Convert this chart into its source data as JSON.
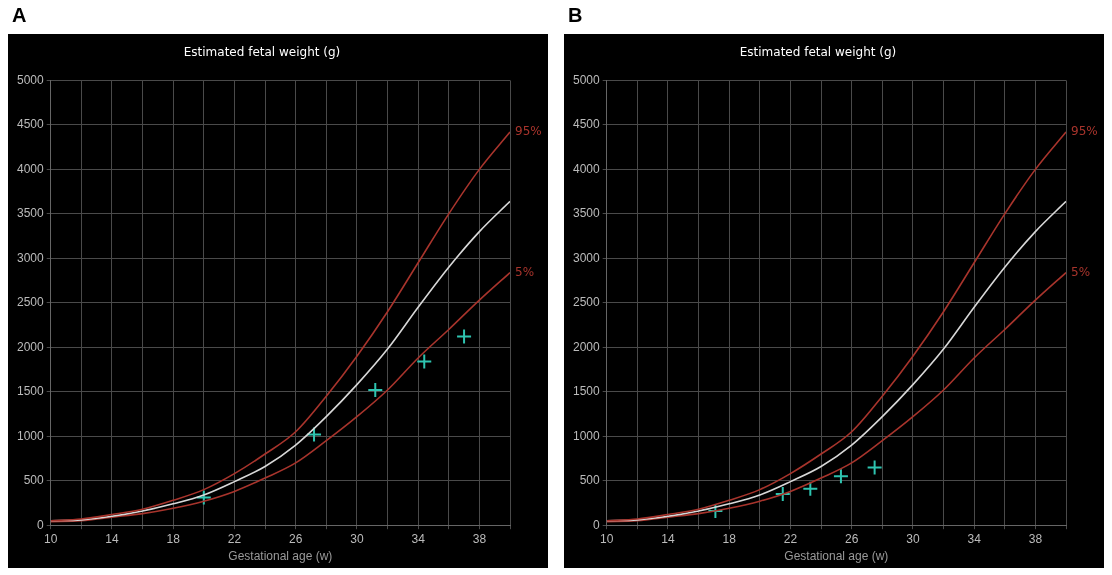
{
  "chart_data": [
    {
      "type": "line",
      "title": "Estimated fetal weight (g)",
      "xlabel": "Gestational age (w)",
      "annotations": [
        "A"
      ],
      "grid": true,
      "legend": false,
      "xlim": [
        10,
        40
      ],
      "ylim": [
        0,
        5000
      ],
      "xticks": [
        10,
        {
          "value": 12,
          "label": null
        },
        14,
        {
          "value": 16,
          "label": null
        },
        18,
        {
          "value": 20,
          "label": null
        },
        22,
        {
          "value": 24,
          "label": null
        },
        26,
        {
          "value": 28,
          "label": null
        },
        30,
        {
          "value": 32,
          "label": null
        },
        34,
        {
          "value": 36,
          "label": null
        },
        38,
        {
          "value": 40,
          "label": null
        }
      ],
      "yticks": [
        0,
        500,
        1000,
        1500,
        2000,
        2500,
        3000,
        3500,
        4000,
        4500,
        5000
      ],
      "series": [
        {
          "name": "95%",
          "type": "line",
          "color": "#a8342c",
          "marker": "none",
          "x": [
            10,
            12,
            14,
            16,
            18,
            20,
            22,
            24,
            26,
            28,
            30,
            32,
            34,
            36,
            38,
            40
          ],
          "values": [
            50,
            70,
            120,
            180,
            280,
            400,
            580,
            800,
            1050,
            1450,
            1900,
            2400,
            2950,
            3500,
            4000,
            4420
          ]
        },
        {
          "type": "line",
          "color": "#d8d8d8",
          "marker": "none",
          "x": [
            10,
            12,
            14,
            16,
            18,
            20,
            22,
            24,
            26,
            28,
            30,
            32,
            34,
            36,
            38,
            40
          ],
          "values": [
            50,
            60,
            100,
            160,
            240,
            340,
            490,
            660,
            900,
            1220,
            1580,
            1980,
            2450,
            2900,
            3300,
            3640
          ]
        },
        {
          "name": "5%",
          "type": "line",
          "color": "#a8342c",
          "marker": "none",
          "x": [
            10,
            12,
            14,
            16,
            18,
            20,
            22,
            24,
            26,
            28,
            30,
            32,
            34,
            36,
            38,
            40
          ],
          "values": [
            40,
            50,
            90,
            130,
            190,
            270,
            380,
            530,
            700,
            950,
            1220,
            1520,
            1880,
            2200,
            2530,
            2840
          ]
        },
        {
          "type": "scatter",
          "color": "#2ec4b0",
          "marker": "cross",
          "x": [
            20,
            27.2,
            31.2,
            34.4,
            37
          ],
          "values": [
            310,
            1020,
            1520,
            1840,
            2120
          ]
        }
      ]
    },
    {
      "type": "line",
      "title": "Estimated fetal weight (g)",
      "xlabel": "Gestational age (w)",
      "annotations": [
        "B"
      ],
      "grid": true,
      "legend": false,
      "xlim": [
        10,
        40
      ],
      "ylim": [
        0,
        5000
      ],
      "xticks": [
        10,
        {
          "value": 12,
          "label": null
        },
        14,
        {
          "value": 16,
          "label": null
        },
        18,
        {
          "value": 20,
          "label": null
        },
        22,
        {
          "value": 24,
          "label": null
        },
        26,
        {
          "value": 28,
          "label": null
        },
        30,
        {
          "value": 32,
          "label": null
        },
        34,
        {
          "value": 36,
          "label": null
        },
        38,
        {
          "value": 40,
          "label": null
        }
      ],
      "yticks": [
        0,
        500,
        1000,
        1500,
        2000,
        2500,
        3000,
        3500,
        4000,
        4500,
        5000
      ],
      "series": [
        {
          "name": "95%",
          "type": "line",
          "color": "#a8342c",
          "marker": "none",
          "x": [
            10,
            12,
            14,
            16,
            18,
            20,
            22,
            24,
            26,
            28,
            30,
            32,
            34,
            36,
            38,
            40
          ],
          "values": [
            50,
            70,
            120,
            180,
            280,
            400,
            580,
            800,
            1050,
            1450,
            1900,
            2400,
            2950,
            3500,
            4000,
            4420
          ]
        },
        {
          "type": "line",
          "color": "#d8d8d8",
          "marker": "none",
          "x": [
            10,
            12,
            14,
            16,
            18,
            20,
            22,
            24,
            26,
            28,
            30,
            32,
            34,
            36,
            38,
            40
          ],
          "values": [
            50,
            60,
            100,
            160,
            240,
            340,
            490,
            660,
            900,
            1220,
            1580,
            1980,
            2450,
            2900,
            3300,
            3640
          ]
        },
        {
          "name": "5%",
          "type": "line",
          "color": "#a8342c",
          "marker": "none",
          "x": [
            10,
            12,
            14,
            16,
            18,
            20,
            22,
            24,
            26,
            28,
            30,
            32,
            34,
            36,
            38,
            40
          ],
          "values": [
            40,
            50,
            90,
            130,
            190,
            270,
            380,
            530,
            700,
            950,
            1220,
            1520,
            1880,
            2200,
            2530,
            2840
          ]
        },
        {
          "type": "scatter",
          "color": "#2ec4b0",
          "marker": "cross",
          "x": [
            17.1,
            21.5,
            23.3,
            25.3,
            27.5
          ],
          "values": [
            160,
            350,
            410,
            550,
            650
          ]
        }
      ]
    }
  ]
}
